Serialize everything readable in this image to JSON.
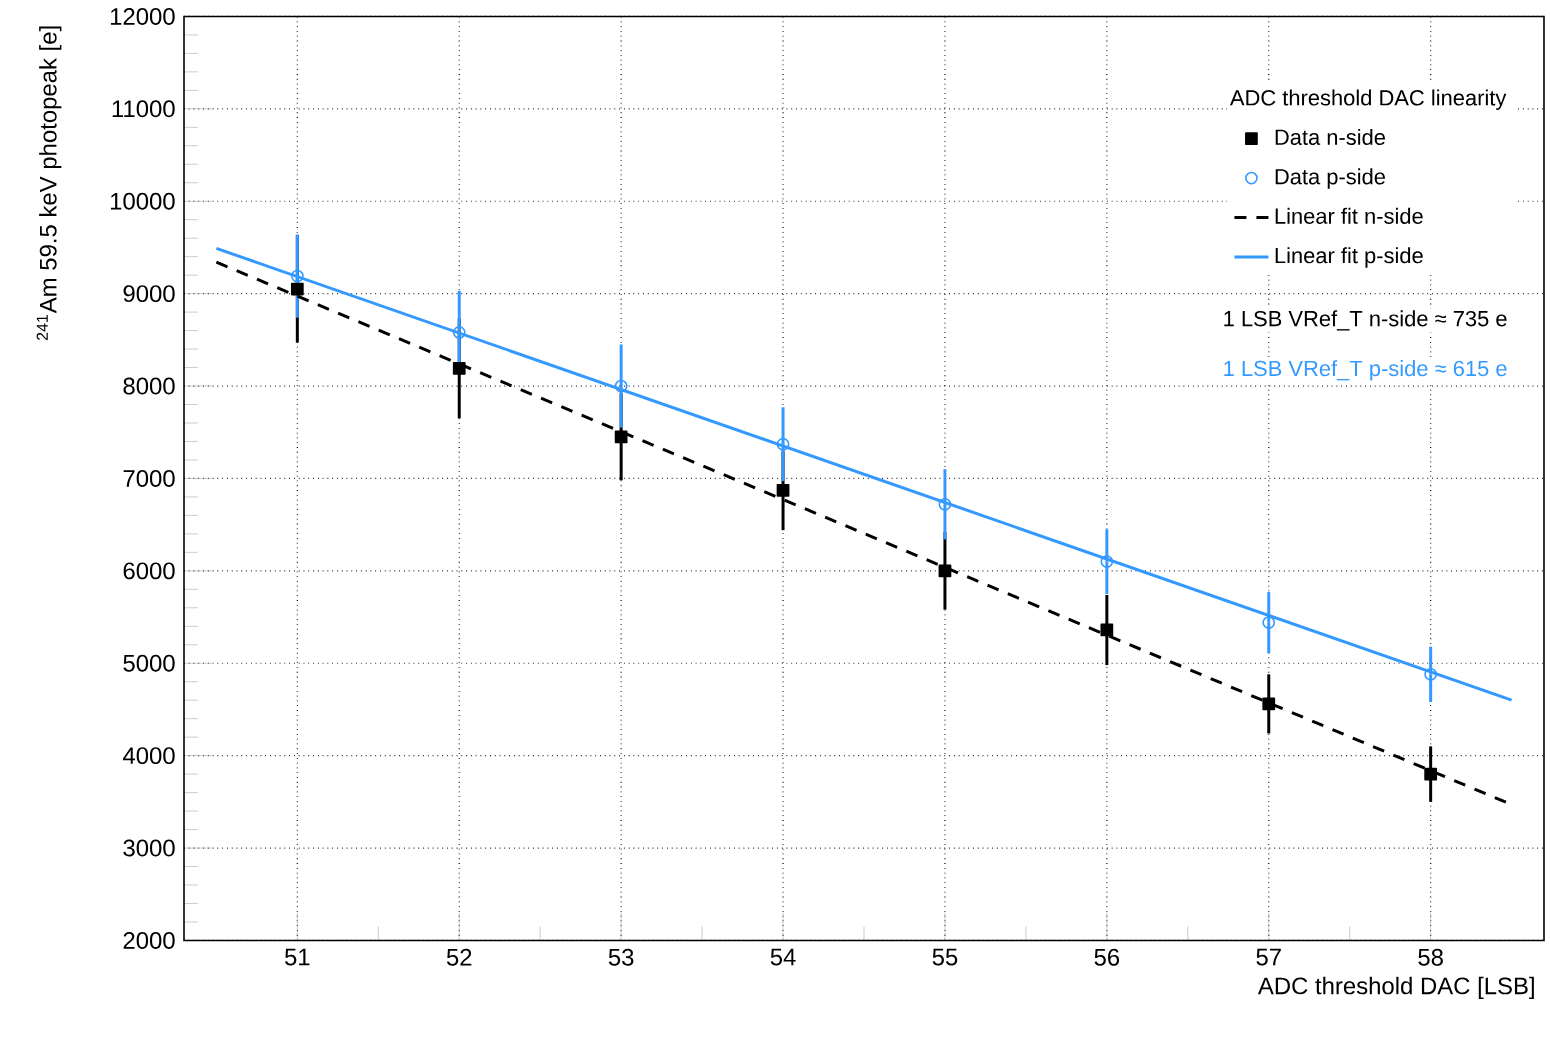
{
  "chart_data": {
    "type": "scatter",
    "xlabel": "ADC threshold DAC [LSB]",
    "ylabel": "$^{241}$Am 59.5 keV photopeak [e]",
    "legend_title": "ADC threshold DAC linearity",
    "annotations": [
      "1 LSB VRef_T n-side ≈ 735 e",
      "1 LSB VRef_T p-side ≈ 615 e"
    ],
    "xlim": [
      50.3,
      58.7
    ],
    "xticks": [
      51,
      52,
      53,
      54,
      55,
      56,
      57,
      58
    ],
    "ylim": [
      2000,
      12000
    ],
    "yticks": [
      2000,
      3000,
      4000,
      5000,
      6000,
      7000,
      8000,
      9000,
      10000,
      11000,
      12000
    ],
    "grid": true,
    "legend": "top right",
    "series": [
      {
        "name": "Data n-side",
        "marker": "square",
        "color": "#000000",
        "x": [
          51,
          52,
          53,
          54,
          55,
          56,
          57,
          58
        ],
        "values": [
          9050,
          8190,
          7450,
          6870,
          6000,
          5360,
          4560,
          3800
        ],
        "errors": [
          580,
          540,
          470,
          430,
          420,
          380,
          320,
          300
        ]
      },
      {
        "name": "Data p-side",
        "marker": "circle",
        "color": "#3399ff",
        "x": [
          51,
          52,
          53,
          54,
          55,
          56,
          57,
          58
        ],
        "values": [
          9190,
          8580,
          8000,
          7370,
          6720,
          6100,
          5440,
          4880
        ],
        "errors": [
          450,
          450,
          450,
          400,
          380,
          350,
          330,
          300
        ]
      },
      {
        "name": "Linear fit n-side",
        "type": "line",
        "line_style": "dashed",
        "color": "#000000",
        "x": [
          50.5,
          58.5
        ],
        "values": [
          9340,
          3470
        ]
      },
      {
        "name": "Linear fit p-side",
        "type": "line",
        "line_style": "solid",
        "color": "#3399ff",
        "x": [
          50.5,
          58.5
        ],
        "values": [
          9490,
          4600
        ]
      }
    ]
  }
}
